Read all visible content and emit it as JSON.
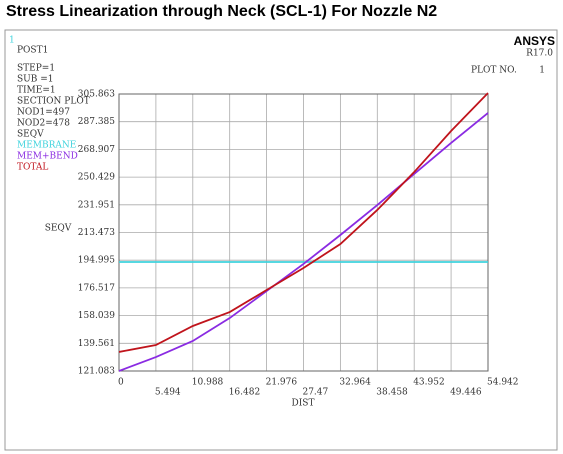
{
  "chart_data": {
    "type": "line",
    "title": "Stress Linearization through Neck (SCL-1) For Nozzle N2",
    "x_label": "DIST",
    "y_label": "SEQV",
    "x": [
      0,
      5.494,
      10.988,
      16.482,
      21.976,
      27.47,
      32.964,
      38.458,
      43.952,
      49.446,
      54.942
    ],
    "series": [
      {
        "name": "MEMBRANE",
        "color": "#3fd3dd",
        "values": [
          193.8,
          193.8,
          193.8,
          193.8,
          193.8,
          193.8,
          193.8,
          193.8,
          193.8,
          193.8,
          193.8
        ]
      },
      {
        "name": "MEM+BEND",
        "color": "#8a2be2",
        "values": [
          121.1,
          130.4,
          141.1,
          156.4,
          174.4,
          192.5,
          211.8,
          231.8,
          252.5,
          273.2,
          293.2
        ]
      },
      {
        "name": "TOTAL",
        "color": "#c0141c",
        "values": [
          133.8,
          138.4,
          151.1,
          160.4,
          175.1,
          189.8,
          205.8,
          228.5,
          253.8,
          281.2,
          306.5
        ]
      }
    ],
    "xlim": [
      0,
      54.942
    ],
    "xticks": [
      0,
      5.494,
      10.988,
      16.482,
      21.976,
      27.47,
      32.964,
      38.458,
      43.952,
      49.446,
      54.942
    ],
    "ylim": [
      121.083,
      305.863
    ],
    "yticks": [
      121.083,
      139.561,
      158.039,
      176.517,
      194.995,
      213.473,
      231.951,
      250.429,
      268.907,
      287.385,
      305.863
    ],
    "grid": true
  },
  "window_number": "1",
  "header": "POST1",
  "info": [
    "STEP=1",
    "SUB =1",
    "TIME=1",
    "SECTION PLOT",
    "NOD1=497",
    "NOD2=478",
    "SEQV"
  ],
  "brand": "ANSYS",
  "version": "R17.0",
  "plot_label": "PLOT NO.",
  "plot_number": "1"
}
